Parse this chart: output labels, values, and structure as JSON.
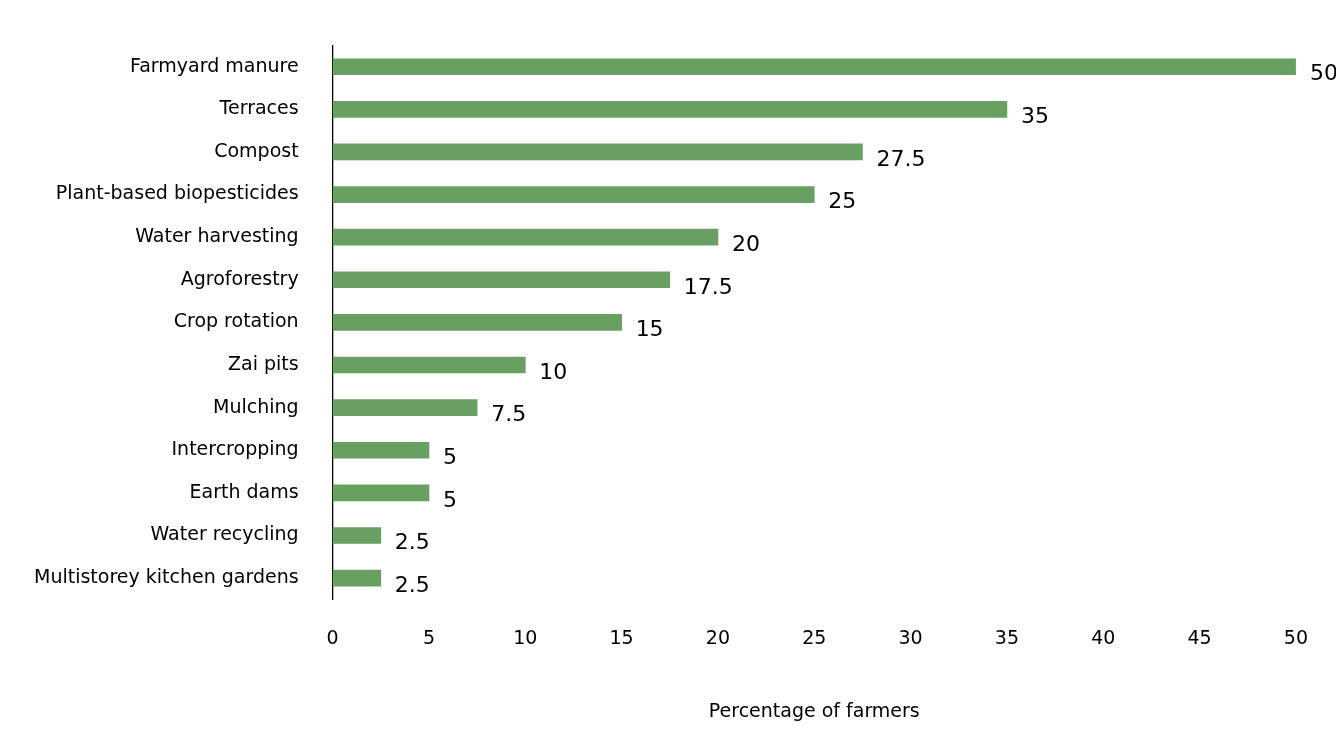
{
  "chart_data": {
    "type": "bar",
    "orientation": "horizontal",
    "xlabel": "Percentage of farmers",
    "categories": [
      "Farmyard manure",
      "Terraces",
      "Compost",
      "Plant-based biopesticides",
      "Water harvesting",
      "Agroforestry",
      "Crop rotation",
      "Zai pits",
      "Mulching",
      "Intercropping",
      "Earth dams",
      "Water recycling",
      "Multistorey kitchen gardens"
    ],
    "values": [
      50,
      35,
      27.5,
      25,
      20,
      17.5,
      15,
      10,
      7.5,
      5,
      5,
      2.5,
      2.5
    ],
    "color": "#68a062",
    "xlim": [
      0,
      50
    ],
    "xticks": [
      0,
      5,
      10,
      15,
      20,
      25,
      30,
      35,
      40,
      45,
      50
    ],
    "grid": false,
    "legend": false,
    "data_labels": true
  }
}
